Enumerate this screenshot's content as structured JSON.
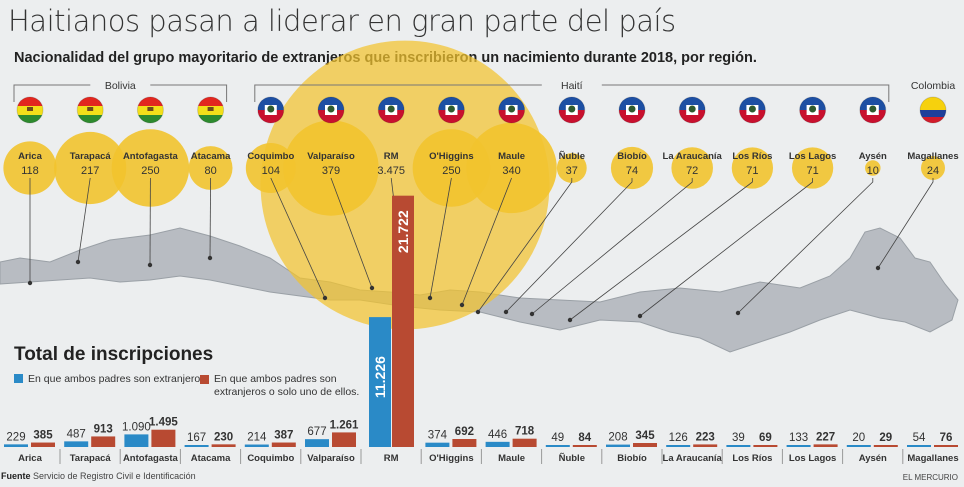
{
  "title": "Haitianos pasan a liderar en gran parte del país",
  "subtitle": "Nacionalidad del grupo mayoritario de extranjeros que inscribieron un nacimiento durante 2018, por región.",
  "groups": [
    {
      "label": "Bolivia",
      "from": 0,
      "to": 3
    },
    {
      "label": "Haití",
      "from": 4,
      "to": 14
    },
    {
      "label": "Colombia",
      "from": 15,
      "to": 15
    }
  ],
  "colors": {
    "blue": "#2a8ac7",
    "red": "#b84a32",
    "circle": "#f2c32e",
    "map": "#b8bcc2"
  },
  "legend": {
    "title": "Total de inscripciones",
    "blue_label": "En que ambos padres son extranjeros",
    "red_label": "En que ambos padres son extranjeros o solo uno de ellos."
  },
  "source_label": "Fuente",
  "source_text": "Servicio de Registro Civil e Identificación",
  "brand": "EL MERCURIO",
  "chart_data": {
    "type": "bar",
    "title": "Total de inscripciones",
    "categories": [
      "Arica",
      "Tarapacá",
      "Antofagasta",
      "Atacama",
      "Coquimbo",
      "Valparaíso",
      "RM",
      "O'Higgins",
      "Maule",
      "Ñuble",
      "Biobío",
      "La Araucanía",
      "Los Ríos",
      "Los Lagos",
      "Aysén",
      "Magallanes"
    ],
    "circle_values": [
      "118",
      "217",
      "250",
      "80",
      "104",
      "379",
      "3.475",
      "250",
      "340",
      "37",
      "74",
      "72",
      "71",
      "71",
      "10",
      "24"
    ],
    "circle_numeric": [
      118,
      217,
      250,
      80,
      104,
      379,
      3475,
      250,
      340,
      37,
      74,
      72,
      71,
      71,
      10,
      24
    ],
    "flags": [
      "bolivia",
      "bolivia",
      "bolivia",
      "bolivia",
      "haiti",
      "haiti",
      "haiti",
      "haiti",
      "haiti",
      "haiti",
      "haiti",
      "haiti",
      "haiti",
      "haiti",
      "haiti",
      "colombia"
    ],
    "series": [
      {
        "name": "En que ambos padres son extranjeros",
        "values": [
          229,
          487,
          1090,
          167,
          214,
          677,
          11226,
          374,
          446,
          49,
          208,
          126,
          39,
          133,
          20,
          54
        ],
        "labels": [
          "229",
          "487",
          "1.090",
          "167",
          "214",
          "677",
          "11.226",
          "374",
          "446",
          "49",
          "208",
          "126",
          "39",
          "133",
          "20",
          "54"
        ]
      },
      {
        "name": "En que ambos padres son extranjeros o solo uno de ellos.",
        "values": [
          385,
          913,
          1495,
          230,
          387,
          1261,
          21722,
          692,
          718,
          84,
          345,
          223,
          69,
          227,
          29,
          76
        ],
        "labels": [
          "385",
          "913",
          "1.495",
          "230",
          "387",
          "1.261",
          "21.722",
          "692",
          "718",
          "84",
          "345",
          "223",
          "69",
          "227",
          "29",
          "76"
        ]
      }
    ]
  }
}
